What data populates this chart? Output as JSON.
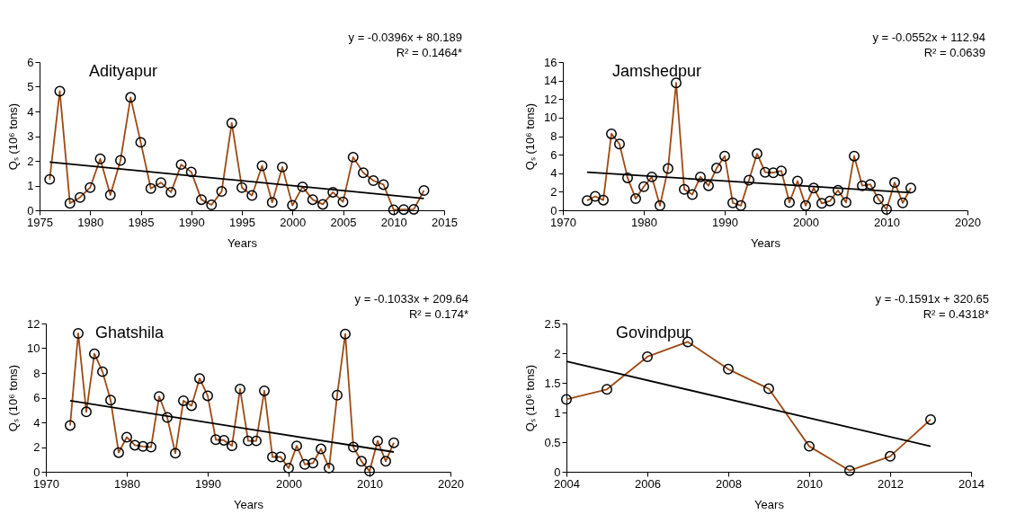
{
  "chart_data": [
    {
      "type": "line",
      "title": "Adityapur",
      "xlabel": "Years",
      "ylabel": "Qₛ (10⁶ tons)",
      "annotations": [
        "y = -0.0396x + 80.189",
        "R² = 0.1464*"
      ],
      "xlim": [
        1975,
        2015
      ],
      "xticks": [
        1975,
        1980,
        1985,
        1990,
        1995,
        2000,
        2005,
        2010,
        2015
      ],
      "ylim": [
        0,
        6
      ],
      "yticks": [
        0,
        1,
        2,
        3,
        4,
        5,
        6
      ],
      "grid": false,
      "marker": "circle",
      "x": [
        1976,
        1977,
        1978,
        1979,
        1980,
        1981,
        1982,
        1983,
        1984,
        1985,
        1986,
        1987,
        1988,
        1989,
        1990,
        1991,
        1992,
        1993,
        1994,
        1995,
        1996,
        1997,
        1998,
        1999,
        2000,
        2001,
        2002,
        2003,
        2004,
        2005,
        2006,
        2007,
        2008,
        2009,
        2010,
        2011,
        2012,
        2013
      ],
      "series": [
        {
          "color": "#9c4a14",
          "values": [
            1.25,
            4.82,
            0.28,
            0.52,
            0.92,
            2.08,
            0.62,
            2.02,
            4.57,
            2.75,
            0.88,
            1.12,
            0.73,
            1.85,
            1.55,
            0.43,
            0.22,
            0.76,
            3.53,
            0.92,
            0.6,
            1.8,
            0.32,
            1.75,
            0.2,
            0.95,
            0.43,
            0.24,
            0.73,
            0.34,
            2.15,
            1.52,
            1.2,
            1.04,
            0.02,
            0.03,
            0.04,
            0.8
          ]
        },
        {
          "type": "line",
          "color": "#000000",
          "marker": "none",
          "x": [
            1976,
            2013
          ],
          "values": [
            1.95,
            0.48
          ]
        }
      ]
    },
    {
      "type": "line",
      "title": "Jamshedpur",
      "xlabel": "Years",
      "ylabel": "Qₛ (10⁶ tons)",
      "annotations": [
        "y = -0.0552x + 112.94",
        "R² = 0.0639"
      ],
      "xlim": [
        1970,
        2020
      ],
      "xticks": [
        1970,
        1980,
        1990,
        2000,
        2010,
        2020
      ],
      "ylim": [
        0,
        16
      ],
      "yticks": [
        0,
        2,
        4,
        6,
        8,
        10,
        12,
        14,
        16
      ],
      "grid": false,
      "marker": "circle",
      "x": [
        1973,
        1974,
        1975,
        1976,
        1977,
        1978,
        1979,
        1980,
        1981,
        1982,
        1983,
        1984,
        1985,
        1986,
        1987,
        1988,
        1989,
        1990,
        1991,
        1992,
        1993,
        1994,
        1995,
        1996,
        1997,
        1998,
        1999,
        2000,
        2001,
        2002,
        2003,
        2004,
        2005,
        2006,
        2007,
        2008,
        2009,
        2010,
        2011,
        2012,
        2013
      ],
      "series": [
        {
          "color": "#9c4a14",
          "values": [
            1.05,
            1.5,
            1.1,
            8.25,
            7.15,
            3.5,
            1.25,
            2.55,
            3.6,
            0.5,
            4.5,
            13.75,
            2.25,
            1.7,
            3.6,
            2.65,
            4.55,
            5.85,
            0.8,
            0.5,
            3.25,
            6.1,
            4.1,
            4.05,
            4.25,
            0.85,
            3.15,
            0.5,
            2.4,
            0.75,
            1.0,
            2.15,
            0.85,
            5.85,
            2.65,
            2.8,
            1.2,
            0.1,
            3.0,
            0.8,
            2.4
          ]
        },
        {
          "type": "line",
          "color": "#000000",
          "marker": "none",
          "x": [
            1973,
            2013
          ],
          "values": [
            4.1,
            1.9
          ]
        }
      ]
    },
    {
      "type": "line",
      "title": "Ghatshila",
      "xlabel": "Years",
      "ylabel": "Qₛ (10⁶ tons)",
      "annotations": [
        "y = -0.1033x + 209.64",
        "R² = 0.174*"
      ],
      "xlim": [
        1970,
        2020
      ],
      "xticks": [
        1970,
        1980,
        1990,
        2000,
        2010,
        2020
      ],
      "ylim": [
        0,
        12
      ],
      "yticks": [
        0,
        2,
        4,
        6,
        8,
        10,
        12
      ],
      "grid": false,
      "marker": "circle",
      "x": [
        1973,
        1974,
        1975,
        1976,
        1977,
        1978,
        1979,
        1980,
        1981,
        1982,
        1983,
        1984,
        1985,
        1986,
        1987,
        1988,
        1989,
        1990,
        1991,
        1992,
        1993,
        1994,
        1995,
        1996,
        1997,
        1998,
        1999,
        2000,
        2001,
        2002,
        2003,
        2004,
        2005,
        2006,
        2007,
        2008,
        2009,
        2010,
        2011,
        2012,
        2013
      ],
      "series": [
        {
          "color": "#9c4a14",
          "values": [
            3.75,
            11.2,
            4.85,
            9.55,
            8.1,
            5.8,
            1.55,
            2.8,
            2.15,
            2.05,
            2.0,
            6.1,
            4.4,
            1.5,
            5.75,
            5.35,
            7.55,
            6.15,
            2.6,
            2.55,
            2.1,
            6.7,
            2.5,
            2.5,
            6.55,
            1.2,
            1.2,
            0.3,
            2.1,
            0.6,
            0.7,
            1.85,
            0.3,
            6.2,
            11.15,
            2.0,
            0.85,
            0.05,
            2.5,
            0.85,
            2.35
          ]
        },
        {
          "type": "line",
          "color": "#000000",
          "marker": "none",
          "x": [
            1973,
            2013
          ],
          "values": [
            5.75,
            1.6
          ]
        }
      ]
    },
    {
      "type": "line",
      "title": "Govindpur",
      "xlabel": "Years",
      "ylabel": "Qₛ (10⁶ tons)",
      "annotations": [
        "y = -0.1591x + 320.65",
        "R² = 0.4318*"
      ],
      "xlim": [
        2004,
        2014
      ],
      "xticks": [
        2004,
        2006,
        2008,
        2010,
        2012,
        2014
      ],
      "ylim": [
        0,
        2.5
      ],
      "yticks": [
        0,
        0.5,
        1,
        1.5,
        2,
        2.5
      ],
      "grid": false,
      "marker": "circle",
      "x": [
        2004,
        2005,
        2006,
        2007,
        2008,
        2009,
        2010,
        2011,
        2012,
        2013
      ],
      "series": [
        {
          "color": "#9c4a14",
          "values": [
            1.22,
            1.39,
            1.94,
            2.19,
            1.73,
            1.4,
            0.43,
            0.02,
            0.26,
            0.88
          ]
        },
        {
          "type": "line",
          "color": "#000000",
          "marker": "none",
          "x": [
            2004,
            2013
          ],
          "values": [
            1.86,
            0.43
          ]
        }
      ]
    }
  ]
}
